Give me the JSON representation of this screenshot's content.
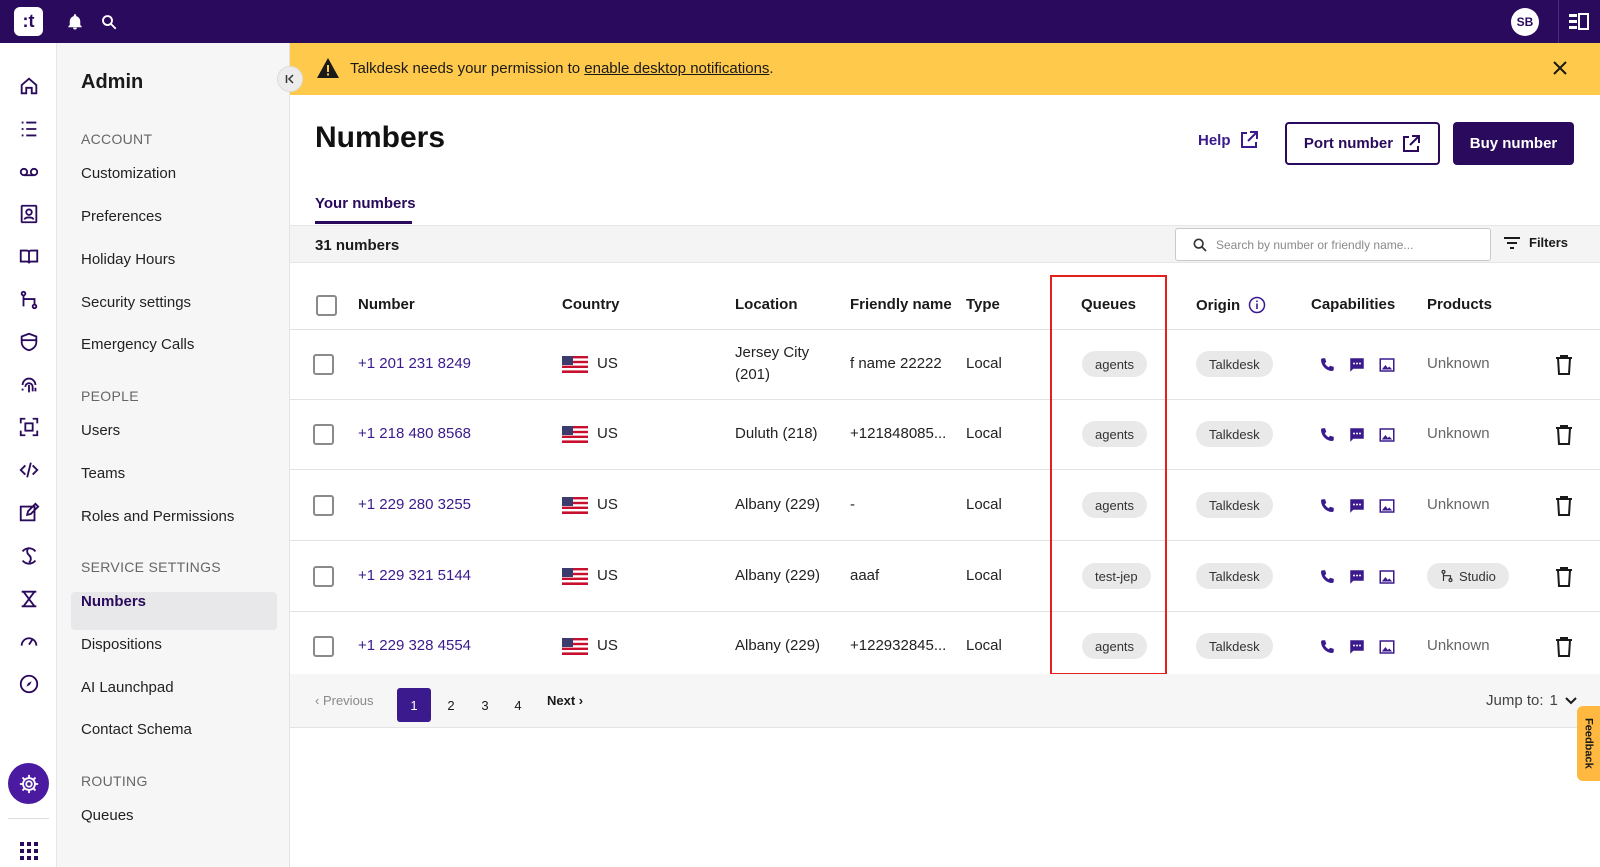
{
  "topbar": {
    "logo_text": ":t",
    "avatar_initials": "SB",
    "icons": [
      "bell-icon",
      "search-icon",
      "panel-icon"
    ]
  },
  "rail": {
    "icons": [
      "home-icon",
      "list-icon",
      "voicemail-icon",
      "contacts-icon",
      "book-icon",
      "flow-icon",
      "shield-icon",
      "fingerprint-icon",
      "scan-icon",
      "code-icon",
      "edit-icon",
      "puzzle-icon",
      "routing-icon",
      "gauge-icon",
      "compass-icon",
      "gear-icon",
      "apps-grid-icon"
    ]
  },
  "sidebar": {
    "title": "Admin",
    "sections": [
      {
        "title": "ACCOUNT",
        "items": [
          "Customization",
          "Preferences",
          "Holiday Hours",
          "Security settings",
          "Emergency Calls"
        ]
      },
      {
        "title": "PEOPLE",
        "items": [
          "Users",
          "Teams",
          "Roles and Permissions"
        ]
      },
      {
        "title": "SERVICE SETTINGS",
        "items": [
          "Numbers",
          "Dispositions",
          "AI Launchpad",
          "Contact Schema"
        ]
      },
      {
        "title": "ROUTING",
        "items": [
          "Queues"
        ]
      }
    ],
    "active_item": "Numbers"
  },
  "banner": {
    "text_before": "Talkdesk needs your permission to ",
    "link_text": "enable desktop notifications",
    "text_after": "."
  },
  "page": {
    "title": "Numbers",
    "help_label": "Help",
    "port_label": "Port number",
    "buy_label": "Buy number",
    "tab_label": "Your numbers",
    "count_label": "31 numbers",
    "search_placeholder": "Search by number or friendly name...",
    "filters_label": "Filters"
  },
  "table": {
    "headers": {
      "number": "Number",
      "country": "Country",
      "location": "Location",
      "friendly": "Friendly name",
      "type": "Type",
      "queues": "Queues",
      "origin": "Origin",
      "capabilities": "Capabilities",
      "products": "Products"
    },
    "rows": [
      {
        "number": "+1 201 231 8249",
        "country": "US",
        "location_line1": "Jersey City",
        "location_line2": "(201)",
        "friendly": "f name 22222",
        "type": "Local",
        "queue": "agents",
        "origin": "Talkdesk",
        "product": "Unknown"
      },
      {
        "number": "+1 218 480 8568",
        "country": "US",
        "location_line1": "Duluth (218)",
        "location_line2": "",
        "friendly": "+121848085...",
        "type": "Local",
        "queue": "agents",
        "origin": "Talkdesk",
        "product": "Unknown"
      },
      {
        "number": "+1 229 280 3255",
        "country": "US",
        "location_line1": "Albany (229)",
        "location_line2": "",
        "friendly": "-",
        "type": "Local",
        "queue": "agents",
        "origin": "Talkdesk",
        "product": "Unknown"
      },
      {
        "number": "+1 229 321 5144",
        "country": "US",
        "location_line1": "Albany (229)",
        "location_line2": "",
        "friendly": "aaaf",
        "type": "Local",
        "queue": "test-jep",
        "origin": "Talkdesk",
        "product": "Studio"
      },
      {
        "number": "+1 229 328 4554",
        "country": "US",
        "location_line1": "Albany (229)",
        "location_line2": "",
        "friendly": "+122932845...",
        "type": "Local",
        "queue": "agents",
        "origin": "Talkdesk",
        "product": "Unknown"
      }
    ]
  },
  "pagination": {
    "previous": "Previous",
    "pages": [
      "1",
      "2",
      "3",
      "4"
    ],
    "active_page": "1",
    "next": "Next",
    "jump_label": "Jump to:",
    "jump_value": "1"
  },
  "feedback_label": "Feedback",
  "colors": {
    "brand": "#2a0a5c",
    "accent": "#3a1a8c",
    "banner": "#ffc94b",
    "highlight": "#e3201b"
  }
}
